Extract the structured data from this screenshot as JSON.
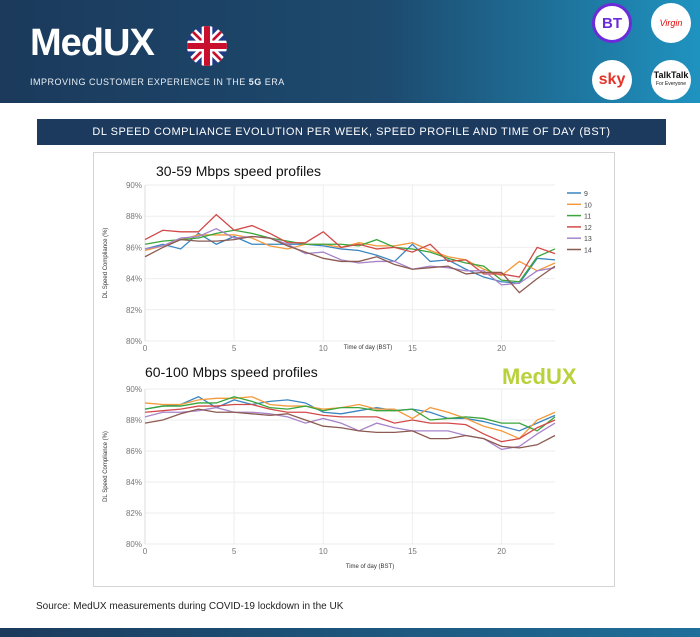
{
  "header": {
    "logo": "MedUX",
    "tagline_pre": "IMPROVING CUSTOMER EXPERIENCE IN THE ",
    "tagline_bold": "5G",
    "tagline_post": " ERA",
    "operators": [
      "BT",
      "Virgin",
      "sky",
      "TalkTalk"
    ],
    "talktalk_sub": "For Everyone"
  },
  "title": "DL SPEED COMPLIANCE EVOLUTION PER WEEK, SPEED PROFILE AND TIME OF DAY (BST)",
  "watermark": "MedUX",
  "source": "Source: MedUX measurements during COVID-19 lockdown in the UK",
  "colors": {
    "9": "#3a86c0",
    "10": "#f39a3c",
    "11": "#3aa53a",
    "12": "#d24a48",
    "13": "#a784c9",
    "14": "#8c5a50"
  },
  "chart_data": [
    {
      "type": "line",
      "title": "30-59 Mbps speed profiles",
      "xlabel": "Time of day (BST)",
      "ylabel": "DL Speed Compliance (%)",
      "xlim": [
        0,
        23
      ],
      "ylim": [
        80,
        90
      ],
      "xticks": [
        0,
        5,
        10,
        15,
        20
      ],
      "yticks": [
        "80%",
        "82%",
        "84%",
        "86%",
        "88%",
        "90%"
      ],
      "legend": "right",
      "grid": true,
      "x": [
        0,
        1,
        2,
        3,
        4,
        5,
        6,
        7,
        8,
        9,
        10,
        11,
        12,
        13,
        14,
        15,
        16,
        17,
        18,
        19,
        20,
        21,
        22,
        23
      ],
      "series": [
        {
          "name": "9",
          "values": [
            85.9,
            86.2,
            85.9,
            86.9,
            86.2,
            86.7,
            86.2,
            86.2,
            86.2,
            86.2,
            86.1,
            85.9,
            85.8,
            85.5,
            85.1,
            86.2,
            85.1,
            85.2,
            84.6,
            84.1,
            83.8,
            83.7,
            85.3,
            85.2
          ]
        },
        {
          "name": "10",
          "values": [
            85.8,
            86.1,
            86.5,
            86.8,
            86.8,
            86.8,
            86.6,
            86.1,
            85.9,
            86.2,
            86.2,
            86.0,
            86.3,
            86.1,
            86.1,
            86.3,
            85.8,
            85.4,
            85.2,
            84.6,
            84.2,
            85.1,
            84.5,
            85.0
          ]
        },
        {
          "name": "11",
          "values": [
            86.2,
            86.4,
            86.5,
            86.6,
            86.9,
            87.1,
            86.9,
            86.6,
            86.4,
            86.2,
            86.2,
            86.2,
            86.1,
            86.5,
            86.0,
            85.9,
            85.7,
            85.3,
            85.0,
            84.8,
            83.9,
            83.8,
            85.4,
            85.9
          ]
        },
        {
          "name": "12",
          "values": [
            86.5,
            87.1,
            87.0,
            87.0,
            88.1,
            87.1,
            87.4,
            86.9,
            86.3,
            86.3,
            87.0,
            86.0,
            86.2,
            85.9,
            86.0,
            85.7,
            86.2,
            85.1,
            85.2,
            84.3,
            84.3,
            84.1,
            86.0,
            85.6
          ]
        },
        {
          "name": "13",
          "values": [
            85.9,
            86.1,
            86.6,
            86.7,
            87.2,
            86.6,
            86.7,
            86.6,
            86.2,
            85.6,
            85.7,
            85.2,
            85.0,
            85.1,
            85.1,
            84.6,
            84.8,
            84.7,
            84.5,
            84.5,
            83.6,
            83.7,
            84.5,
            84.7
          ]
        },
        {
          "name": "14",
          "values": [
            85.4,
            86.0,
            86.5,
            86.4,
            86.4,
            86.5,
            86.7,
            86.6,
            86.1,
            85.7,
            85.3,
            85.1,
            85.1,
            85.4,
            84.9,
            84.6,
            84.7,
            84.8,
            84.3,
            84.4,
            84.4,
            83.1,
            84.0,
            84.8
          ]
        }
      ]
    },
    {
      "type": "line",
      "title": "60-100 Mbps speed profiles",
      "xlabel": "Time of day (BST)",
      "ylabel": "DL Speed Compliance (%)",
      "xlim": [
        0,
        23
      ],
      "ylim": [
        80,
        90
      ],
      "xticks": [
        0,
        5,
        10,
        15,
        20
      ],
      "yticks": [
        "80%",
        "82%",
        "84%",
        "86%",
        "88%",
        "90%"
      ],
      "grid": true,
      "x": [
        0,
        1,
        2,
        3,
        4,
        5,
        6,
        7,
        8,
        9,
        10,
        11,
        12,
        13,
        14,
        15,
        16,
        17,
        18,
        19,
        20,
        21,
        22,
        23
      ],
      "series": [
        {
          "name": "9",
          "values": [
            88.7,
            88.9,
            89.0,
            89.5,
            88.8,
            89.3,
            89.0,
            89.2,
            89.3,
            89.1,
            88.5,
            88.4,
            88.6,
            88.8,
            88.6,
            88.7,
            88.5,
            88.1,
            88.1,
            87.9,
            87.6,
            87.3,
            87.8,
            88.3
          ]
        },
        {
          "name": "10",
          "values": [
            89.1,
            89.0,
            89.0,
            89.3,
            89.4,
            89.4,
            89.5,
            89.0,
            88.9,
            88.9,
            88.7,
            88.8,
            89.0,
            88.7,
            88.7,
            88.1,
            88.8,
            88.5,
            88.1,
            87.6,
            87.3,
            86.8,
            88.0,
            88.5
          ]
        },
        {
          "name": "11",
          "values": [
            88.7,
            88.9,
            88.9,
            89.1,
            89.1,
            89.5,
            89.2,
            88.8,
            88.7,
            88.9,
            88.6,
            88.8,
            88.8,
            88.6,
            88.6,
            88.7,
            88.0,
            88.1,
            88.2,
            88.1,
            87.8,
            87.8,
            87.3,
            88.2
          ]
        },
        {
          "name": "12",
          "values": [
            88.5,
            88.6,
            88.7,
            88.9,
            88.9,
            89.0,
            89.0,
            88.7,
            88.5,
            88.5,
            88.3,
            88.2,
            88.2,
            88.2,
            87.8,
            88.0,
            87.8,
            87.8,
            87.7,
            87.1,
            86.6,
            86.8,
            87.5,
            88.0
          ]
        },
        {
          "name": "13",
          "values": [
            88.2,
            88.5,
            88.5,
            88.6,
            88.8,
            88.5,
            88.5,
            88.4,
            88.2,
            87.8,
            88.1,
            87.8,
            87.3,
            87.8,
            87.5,
            87.3,
            87.3,
            87.3,
            87.0,
            86.8,
            86.1,
            86.3,
            87.1,
            87.8
          ]
        },
        {
          "name": "14",
          "values": [
            87.8,
            88.0,
            88.4,
            88.7,
            88.5,
            88.5,
            88.4,
            88.3,
            88.4,
            88.0,
            87.6,
            87.5,
            87.3,
            87.2,
            87.2,
            87.3,
            86.8,
            86.8,
            87.0,
            86.8,
            86.3,
            86.2,
            86.4,
            87.0
          ]
        }
      ]
    }
  ]
}
